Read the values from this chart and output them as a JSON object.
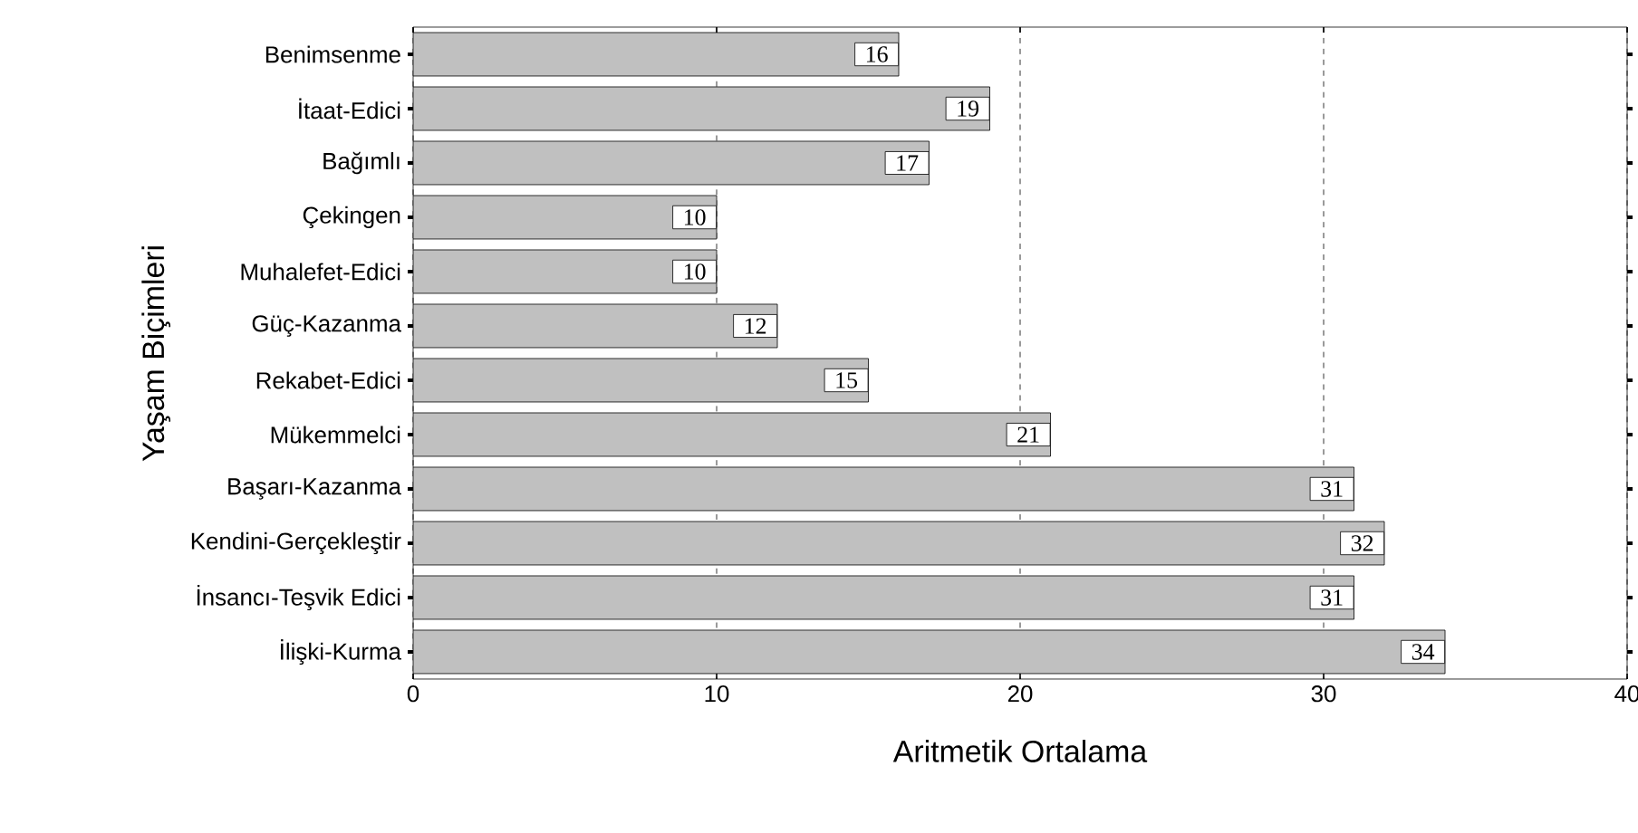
{
  "chart_data": {
    "type": "bar",
    "orientation": "horizontal",
    "xlabel": "Aritmetik Ortalama",
    "ylabel": "Yaşam Biçimleri",
    "categories": [
      "Benimsenme",
      "İtaat-Edici",
      "Bağımlı",
      "Çekingen",
      "Muhalefet-Edici",
      "Güç-Kazanma",
      "Rekabet-Edici",
      "Mükemmelci",
      "Başarı-Kazanma",
      "Kendini-Gerçekleştir",
      "İnsancı-Teşvik Edici",
      "İlişki-Kurma"
    ],
    "values": [
      16,
      19,
      17,
      10,
      10,
      12,
      15,
      21,
      31,
      32,
      31,
      34
    ],
    "color": "#c0c0c0",
    "data_labels": true,
    "xlim": [
      0,
      40
    ],
    "xticks": [
      0,
      10,
      20,
      30,
      40
    ],
    "grid": "x"
  }
}
